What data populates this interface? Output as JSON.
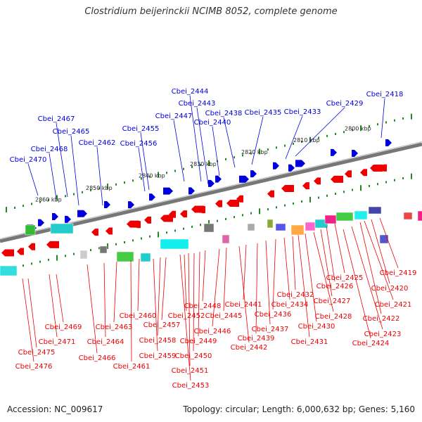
{
  "title": "Clostridium beijerinckii NCIMB 8052, complete genome",
  "footer": {
    "accession": "Accession: NC_009617",
    "summary": "Topology: circular; Length: 6,000,632 bp; Genes: 5,160"
  },
  "colors": {
    "forward": "#0000dd",
    "reverse": "#ee0000",
    "backbone": "#777777",
    "tick": "#228822"
  },
  "scale_labels": [
    "2860 kbp",
    "2850 kbp",
    "2840 kbp",
    "2830 kbp",
    "2820 kbp",
    "2810 kbp",
    "2800 kbp"
  ],
  "forward_genes": [
    "Cbei_2470",
    "Cbei_2468",
    "Cbei_2467",
    "Cbei_2465",
    "Cbei_2462",
    "Cbei_2456",
    "Cbei_2455",
    "Cbei_2447",
    "Cbei_2444",
    "Cbei_2443",
    "Cbei_2440",
    "Cbei_2438",
    "Cbei_2435",
    "Cbei_2433",
    "Cbei_2429",
    "Cbei_2418"
  ],
  "reverse_genes": [
    "Cbei_2419",
    "Cbei_2420",
    "Cbei_2421",
    "Cbei_2422",
    "Cbei_2423",
    "Cbei_2424",
    "Cbei_2425",
    "Cbei_2426",
    "Cbei_2427",
    "Cbei_2428",
    "Cbei_2430",
    "Cbei_2431",
    "Cbei_2432",
    "Cbei_2434",
    "Cbei_2436",
    "Cbei_2437",
    "Cbei_2439",
    "Cbei_2441",
    "Cbei_2442",
    "Cbei_2445",
    "Cbei_2446",
    "Cbei_2448",
    "Cbei_2449",
    "Cbei_2450",
    "Cbei_2451",
    "Cbei_2452",
    "Cbei_2453",
    "Cbei_2457",
    "Cbei_2458",
    "Cbei_2459",
    "Cbei_2460",
    "Cbei_2461",
    "Cbei_2463",
    "Cbei_2464",
    "Cbei_2466",
    "Cbei_2469",
    "Cbei_2471",
    "Cbei_2475",
    "Cbei_2476"
  ]
}
